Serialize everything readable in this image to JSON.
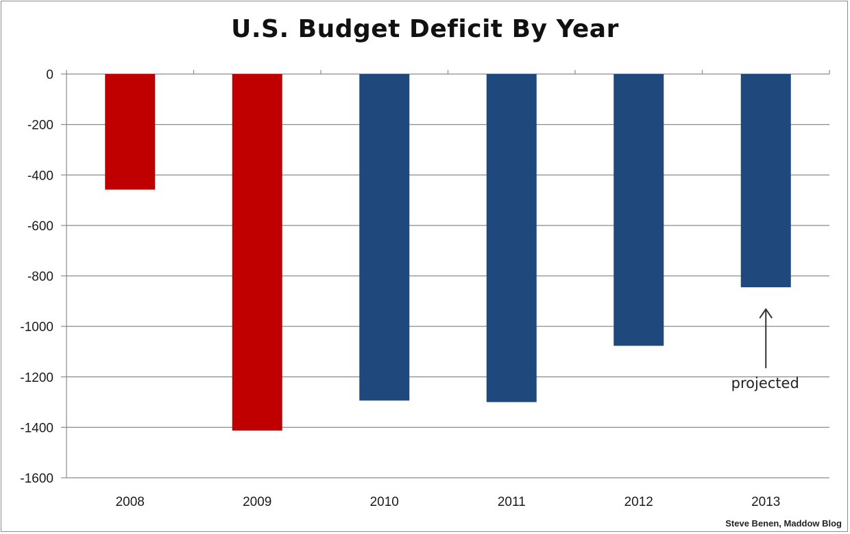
{
  "chart_data": {
    "type": "bar",
    "title": "U.S. Budget Deficit By Year",
    "xlabel": "",
    "ylabel": "",
    "categories": [
      "2008",
      "2009",
      "2010",
      "2011",
      "2012",
      "2013"
    ],
    "values": [
      -458,
      -1413,
      -1294,
      -1300,
      -1077,
      -845
    ],
    "bar_colors": [
      "#c00000",
      "#c00000",
      "#1f497d",
      "#1f497d",
      "#1f497d",
      "#1f497d"
    ],
    "ylim": [
      -1600,
      0
    ],
    "yticks": [
      0,
      -200,
      -400,
      -600,
      -800,
      -1000,
      -1200,
      -1400,
      -1600
    ],
    "ytick_labels": [
      "0",
      "-200",
      "-400",
      "-600",
      "-800",
      "-1000",
      "-1200",
      "-1400",
      "-1600"
    ],
    "grid": true,
    "annotation": {
      "text": "projected",
      "category": "2013"
    }
  },
  "credit": "Steve Benen, Maddow Blog"
}
